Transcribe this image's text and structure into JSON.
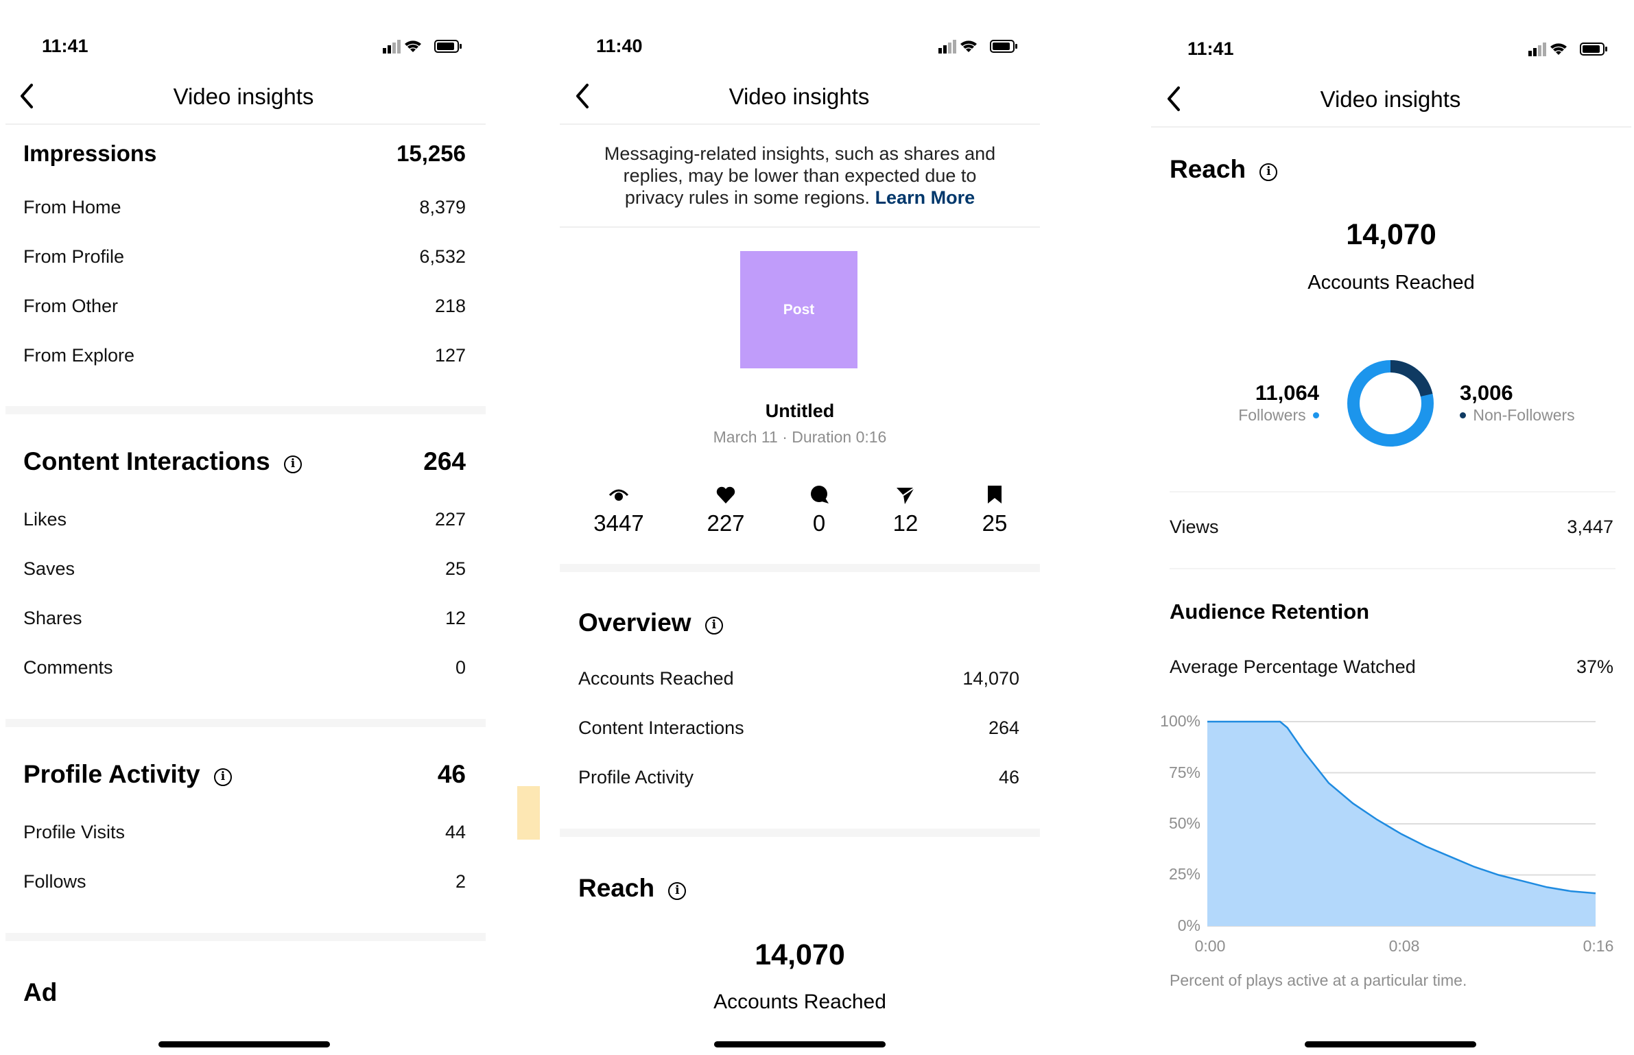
{
  "colors": {
    "accent_blue": "#1c95ec",
    "dark_navy": "#0f3a62",
    "post_purple": "#c09cfa",
    "chart_fill": "#b3d8fb",
    "chart_line": "#1f8be0",
    "muted": "#8e8e8e",
    "link": "#00376b"
  },
  "panel1": {
    "time": "11:41",
    "title": "Video insights",
    "impressions": {
      "label": "Impressions",
      "value": "15,256",
      "rows": [
        {
          "label": "From Home",
          "value": "8,379"
        },
        {
          "label": "From Profile",
          "value": "6,532"
        },
        {
          "label": "From Other",
          "value": "218"
        },
        {
          "label": "From Explore",
          "value": "127"
        }
      ]
    },
    "interactions": {
      "label": "Content Interactions",
      "value": "264",
      "rows": [
        {
          "label": "Likes",
          "value": "227"
        },
        {
          "label": "Saves",
          "value": "25"
        },
        {
          "label": "Shares",
          "value": "12"
        },
        {
          "label": "Comments",
          "value": "0"
        }
      ]
    },
    "profile": {
      "label": "Profile Activity",
      "value": "46",
      "rows": [
        {
          "label": "Profile Visits",
          "value": "44"
        },
        {
          "label": "Follows",
          "value": "2"
        }
      ]
    },
    "ad_label": "Ad"
  },
  "panel2": {
    "time": "11:40",
    "title": "Video insights",
    "notice_line1": "Messaging-related insights, such as shares and",
    "notice_line2": "replies, may be lower than expected due to",
    "notice_line3": "privacy rules in some regions.",
    "notice_link": "Learn More",
    "post_label": "Post",
    "post_title": "Untitled",
    "post_meta": "March 11 · Duration 0:16",
    "stats": [
      {
        "icon": "eye-icon",
        "value": "3447"
      },
      {
        "icon": "heart-icon",
        "value": "227"
      },
      {
        "icon": "comment-icon",
        "value": "0"
      },
      {
        "icon": "send-icon",
        "value": "12"
      },
      {
        "icon": "bookmark-icon",
        "value": "25"
      }
    ],
    "overview": {
      "label": "Overview",
      "rows": [
        {
          "label": "Accounts Reached",
          "value": "14,070"
        },
        {
          "label": "Content Interactions",
          "value": "264"
        },
        {
          "label": "Profile Activity",
          "value": "46"
        }
      ]
    },
    "reach": {
      "label": "Reach",
      "value": "14,070",
      "caption": "Accounts Reached"
    }
  },
  "panel3": {
    "time": "11:41",
    "title": "Video insights",
    "reach": {
      "label": "Reach",
      "value": "14,070",
      "caption": "Accounts Reached"
    },
    "followers": {
      "value": "11,064",
      "label": "Followers",
      "fraction": 0.786
    },
    "non_followers": {
      "value": "3,006",
      "label": "Non-Followers",
      "fraction": 0.214
    },
    "views": {
      "label": "Views",
      "value": "3,447"
    },
    "retention": {
      "label": "Audience Retention",
      "avg_label": "Average Percentage Watched",
      "avg_value": "37%",
      "caption": "Percent of plays active at a particular time."
    }
  },
  "chart_data": {
    "type": "area",
    "title": "Audience Retention",
    "x_ticks": [
      "0:00",
      "0:08",
      "0:16"
    ],
    "y_ticks": [
      "100%",
      "75%",
      "50%",
      "25%",
      "0%"
    ],
    "ylim": [
      0,
      100
    ],
    "xlim": [
      0,
      16
    ],
    "x": [
      0,
      1,
      2,
      3,
      3.3,
      4,
      5,
      6,
      7,
      8,
      9,
      10,
      11,
      12,
      13,
      14,
      15,
      16
    ],
    "values": [
      100,
      100,
      100,
      100,
      97,
      85,
      70,
      60,
      52,
      45,
      39,
      34,
      29,
      25,
      22,
      19,
      17,
      16
    ],
    "grid": true
  }
}
